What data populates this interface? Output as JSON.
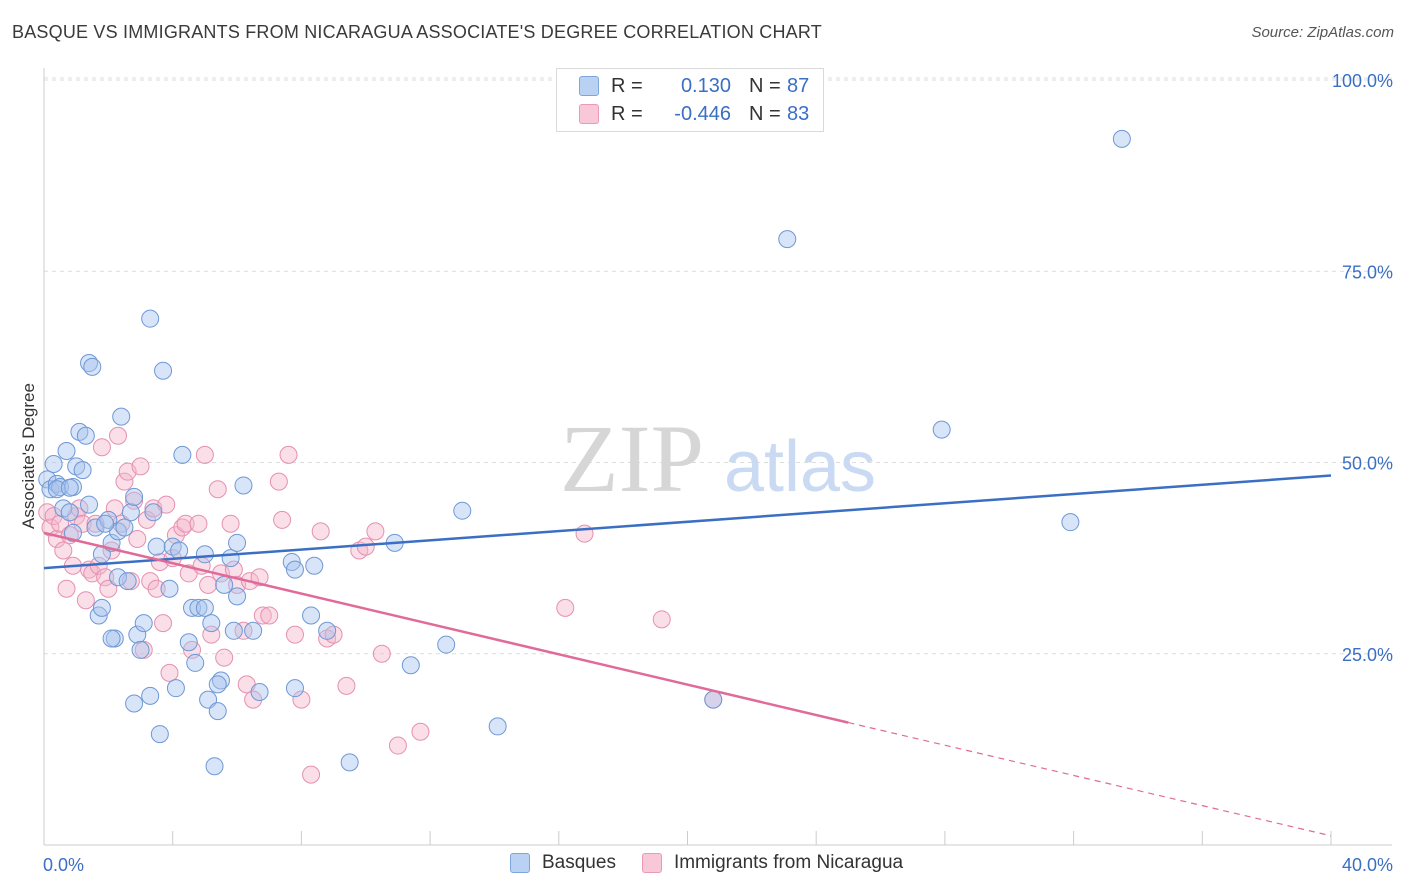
{
  "header": {
    "title": "BASQUE VS IMMIGRANTS FROM NICARAGUA ASSOCIATE'S DEGREE CORRELATION CHART",
    "source": "Source: ZipAtlas.com"
  },
  "watermark": {
    "zip": "ZIP",
    "atlas": "atlas"
  },
  "legend": {
    "rows": [
      {
        "r_label": "R =",
        "r_value": "0.130",
        "n_label": "N =",
        "n_value": "87"
      },
      {
        "r_label": "R =",
        "r_value": "-0.446",
        "n_label": "N =",
        "n_value": "83"
      }
    ]
  },
  "bottom_legend": {
    "series_a": "Basques",
    "series_b": "Immigrants from Nicaragua"
  },
  "chart_data": {
    "type": "scatter",
    "title": "BASQUE VS IMMIGRANTS FROM NICARAGUA ASSOCIATE'S DEGREE CORRELATION CHART",
    "xlabel": "",
    "ylabel": "Associate's Degree",
    "xlim": [
      0,
      40
    ],
    "ylim": [
      0,
      100
    ],
    "x_tick_labels": [
      "0.0%",
      "40.0%"
    ],
    "y_ticks": [
      25,
      50,
      75,
      100
    ],
    "y_tick_labels": [
      "25.0%",
      "50.0%",
      "75.0%",
      "100.0%"
    ],
    "grid": true,
    "colors": {
      "blue": "#3a6fc4",
      "blue_fill": "#a8c4ee",
      "pink": "#e06b98",
      "pink_fill": "#f4b6cb",
      "tick_text": "#3a6fc4"
    },
    "series": [
      {
        "name": "Basques",
        "color": "#3a6fc4",
        "trend": {
          "x": [
            0,
            40
          ],
          "y": [
            36.2,
            48.3
          ]
        },
        "points": [
          [
            0.1,
            47.8
          ],
          [
            0.2,
            46.5
          ],
          [
            0.3,
            49.8
          ],
          [
            0.4,
            47.2
          ],
          [
            0.5,
            46.8
          ],
          [
            0.6,
            44.0
          ],
          [
            0.7,
            51.5
          ],
          [
            0.8,
            43.5
          ],
          [
            0.9,
            40.8
          ],
          [
            0.9,
            46.8
          ],
          [
            1.0,
            49.5
          ],
          [
            1.1,
            54.0
          ],
          [
            1.2,
            49.0
          ],
          [
            1.3,
            53.5
          ],
          [
            1.4,
            44.5
          ],
          [
            1.4,
            63.0
          ],
          [
            1.5,
            62.5
          ],
          [
            1.6,
            41.5
          ],
          [
            1.7,
            30.0
          ],
          [
            1.8,
            38.0
          ],
          [
            1.8,
            31.0
          ],
          [
            2.0,
            42.5
          ],
          [
            2.1,
            39.5
          ],
          [
            2.2,
            27.0
          ],
          [
            2.3,
            41.0
          ],
          [
            2.3,
            35.0
          ],
          [
            2.4,
            56.0
          ],
          [
            2.5,
            41.5
          ],
          [
            2.6,
            34.5
          ],
          [
            2.7,
            43.5
          ],
          [
            2.8,
            45.5
          ],
          [
            2.8,
            18.5
          ],
          [
            2.9,
            27.5
          ],
          [
            3.0,
            25.5
          ],
          [
            3.1,
            29.0
          ],
          [
            3.3,
            19.5
          ],
          [
            3.3,
            68.8
          ],
          [
            3.4,
            43.5
          ],
          [
            3.5,
            39.0
          ],
          [
            3.6,
            14.5
          ],
          [
            3.7,
            62.0
          ],
          [
            3.9,
            33.5
          ],
          [
            4.0,
            39.0
          ],
          [
            4.1,
            20.5
          ],
          [
            4.2,
            38.5
          ],
          [
            4.3,
            51.0
          ],
          [
            4.5,
            26.5
          ],
          [
            4.6,
            31.0
          ],
          [
            4.7,
            23.8
          ],
          [
            4.8,
            31.0
          ],
          [
            5.0,
            31.0
          ],
          [
            5.0,
            38.0
          ],
          [
            5.1,
            19.0
          ],
          [
            5.2,
            29.0
          ],
          [
            5.3,
            10.3
          ],
          [
            5.4,
            17.5
          ],
          [
            5.5,
            21.5
          ],
          [
            5.6,
            34.0
          ],
          [
            5.8,
            37.5
          ],
          [
            5.9,
            28.0
          ],
          [
            6.0,
            32.5
          ],
          [
            6.0,
            39.5
          ],
          [
            6.2,
            47.0
          ],
          [
            6.5,
            28.0
          ],
          [
            6.7,
            20.0
          ],
          [
            7.7,
            37.0
          ],
          [
            7.8,
            36.0
          ],
          [
            7.8,
            20.5
          ],
          [
            8.3,
            30.0
          ],
          [
            8.4,
            36.5
          ],
          [
            8.8,
            28.0
          ],
          [
            9.5,
            10.8
          ],
          [
            10.9,
            39.5
          ],
          [
            11.4,
            23.5
          ],
          [
            12.5,
            26.2
          ],
          [
            13.0,
            43.7
          ],
          [
            14.1,
            15.5
          ],
          [
            20.8,
            19.0
          ],
          [
            23.1,
            79.2
          ],
          [
            27.9,
            54.3
          ],
          [
            31.9,
            42.2
          ],
          [
            33.5,
            92.3
          ],
          [
            0.4,
            46.5
          ],
          [
            0.8,
            46.7
          ],
          [
            1.9,
            42.0
          ],
          [
            2.1,
            27.0
          ],
          [
            5.4,
            21.0
          ]
        ]
      },
      {
        "name": "Immigrants from Nicaragua",
        "color": "#e06b98",
        "trend": {
          "x": [
            0,
            25
          ],
          "y": [
            40.8,
            16.0
          ]
        },
        "trend_dashed": {
          "x": [
            25,
            40
          ],
          "y": [
            16.0,
            1.2
          ]
        },
        "points": [
          [
            0.1,
            43.5
          ],
          [
            0.2,
            41.5
          ],
          [
            0.3,
            43.0
          ],
          [
            0.4,
            40.0
          ],
          [
            0.5,
            42.0
          ],
          [
            0.6,
            38.5
          ],
          [
            0.7,
            33.5
          ],
          [
            0.8,
            40.5
          ],
          [
            0.9,
            36.5
          ],
          [
            1.0,
            43.0
          ],
          [
            1.1,
            44.0
          ],
          [
            1.2,
            42.0
          ],
          [
            1.3,
            32.0
          ],
          [
            1.4,
            36.0
          ],
          [
            1.5,
            35.5
          ],
          [
            1.6,
            42.0
          ],
          [
            1.7,
            36.5
          ],
          [
            1.8,
            52.0
          ],
          [
            1.9,
            35.0
          ],
          [
            2.0,
            33.5
          ],
          [
            2.1,
            38.5
          ],
          [
            2.2,
            44.0
          ],
          [
            2.3,
            53.5
          ],
          [
            2.4,
            42.0
          ],
          [
            2.5,
            47.5
          ],
          [
            2.6,
            48.8
          ],
          [
            2.7,
            34.5
          ],
          [
            2.8,
            45.0
          ],
          [
            2.9,
            40.0
          ],
          [
            3.0,
            49.5
          ],
          [
            3.1,
            25.5
          ],
          [
            3.2,
            42.5
          ],
          [
            3.3,
            34.5
          ],
          [
            3.4,
            44.0
          ],
          [
            3.5,
            33.5
          ],
          [
            3.6,
            37.0
          ],
          [
            3.7,
            29.0
          ],
          [
            3.8,
            44.5
          ],
          [
            3.9,
            22.5
          ],
          [
            4.0,
            37.5
          ],
          [
            4.1,
            40.5
          ],
          [
            4.3,
            41.5
          ],
          [
            4.4,
            42.0
          ],
          [
            4.5,
            35.5
          ],
          [
            4.6,
            25.5
          ],
          [
            4.8,
            42.0
          ],
          [
            4.9,
            36.5
          ],
          [
            5.0,
            51.0
          ],
          [
            5.1,
            34.0
          ],
          [
            5.2,
            27.5
          ],
          [
            5.4,
            46.5
          ],
          [
            5.5,
            35.5
          ],
          [
            5.6,
            24.5
          ],
          [
            5.8,
            42.0
          ],
          [
            5.9,
            36.0
          ],
          [
            6.0,
            34.0
          ],
          [
            6.2,
            28.0
          ],
          [
            6.3,
            21.0
          ],
          [
            6.4,
            34.5
          ],
          [
            6.5,
            19.0
          ],
          [
            6.7,
            35.0
          ],
          [
            6.8,
            30.0
          ],
          [
            7.0,
            30.0
          ],
          [
            7.3,
            47.5
          ],
          [
            7.4,
            42.5
          ],
          [
            7.6,
            51.0
          ],
          [
            7.8,
            27.5
          ],
          [
            8.0,
            19.0
          ],
          [
            8.3,
            9.2
          ],
          [
            8.6,
            41.0
          ],
          [
            8.8,
            27.0
          ],
          [
            9.0,
            27.5
          ],
          [
            9.4,
            20.8
          ],
          [
            9.8,
            38.5
          ],
          [
            10.0,
            39.0
          ],
          [
            10.3,
            41.0
          ],
          [
            10.5,
            25.0
          ],
          [
            11.0,
            13.0
          ],
          [
            11.7,
            14.8
          ],
          [
            16.2,
            31.0
          ],
          [
            16.8,
            40.7
          ],
          [
            19.2,
            29.5
          ],
          [
            20.8,
            19.0
          ]
        ]
      }
    ]
  }
}
